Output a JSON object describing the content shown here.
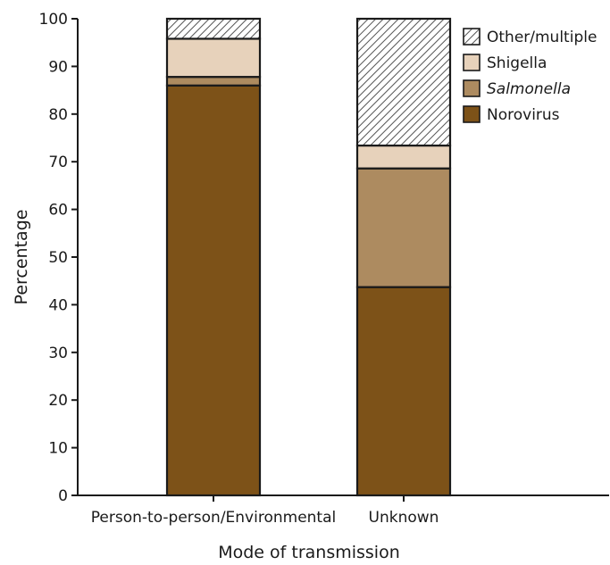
{
  "chart_data": {
    "type": "bar",
    "stacked": true,
    "title": "",
    "xlabel": "Mode of transmission",
    "ylabel": "Percentage",
    "ylim": [
      0,
      100
    ],
    "yticks": [
      0,
      10,
      20,
      30,
      40,
      50,
      60,
      70,
      80,
      90,
      100
    ],
    "grid": false,
    "legend_position": "top-right",
    "categories": [
      "Person-to-person/Environmental",
      "Unknown"
    ],
    "series": [
      {
        "name": "Norovirus",
        "values": [
          86,
          43.7
        ],
        "color": "#7d5218",
        "pattern": "solid",
        "italic": false
      },
      {
        "name": "Salmonella",
        "values": [
          1.8,
          24.9
        ],
        "color": "#ad8b60",
        "pattern": "solid",
        "italic": true
      },
      {
        "name": "Shigella",
        "values": [
          8,
          4.8
        ],
        "color": "#e7d2bb",
        "pattern": "solid",
        "italic": false
      },
      {
        "name": "Other/multiple",
        "values": [
          4.2,
          26.6
        ],
        "color": "#ffffff",
        "pattern": "hatch",
        "italic": false
      }
    ],
    "legend_order": [
      "Other/multiple",
      "Shigella",
      "Salmonella",
      "Norovirus"
    ]
  }
}
